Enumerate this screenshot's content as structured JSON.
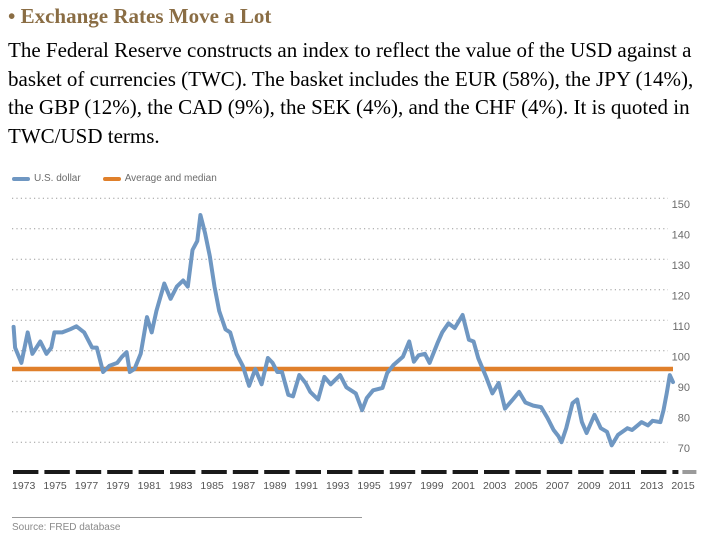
{
  "slide": {
    "heading": "• Exchange Rates Move a Lot",
    "paragraph": "The Federal Reserve constructs an index to reflect the value of the USD against a basket of currencies (TWC). The basket includes the EUR (58%), the JPY (14%), the GBP (12%), the CAD (9%), the SEK (4%), and the CHF (4%).  It is quoted in TWC/USD terms.",
    "source": "Source: FRED database"
  },
  "colors": {
    "heading": "#8a6d44",
    "usd_line": "#6f97c2",
    "average_line": "#e0802b",
    "grid": "#9a9a9a",
    "axis_dash": "#1a1a1a",
    "axis_dash_future": "#9a9a9a"
  },
  "chart_data": {
    "type": "line",
    "title": "",
    "xlabel": "",
    "ylabel": "",
    "xlim": [
      1973,
      2015.5
    ],
    "ylim": [
      70,
      150
    ],
    "y_ticks": [
      70,
      80,
      90,
      100,
      110,
      120,
      130,
      140,
      150
    ],
    "x_ticks": [
      "1973",
      "1975",
      "1977",
      "1979",
      "1981",
      "1983",
      "1985",
      "1987",
      "1989",
      "1991",
      "1993",
      "1995",
      "1997",
      "1999",
      "2001",
      "2003",
      "2005",
      "2007",
      "2009",
      "2011",
      "2013",
      "2015"
    ],
    "grid": "horizontal dotted",
    "y_axis_side": "right",
    "legend": {
      "placement": "top-left",
      "entries": [
        "U.S. dollar",
        "Average and median"
      ]
    },
    "series": [
      {
        "name": "U.S. dollar",
        "points": [
          [
            1973.1,
            107.8
          ],
          [
            1973.2,
            101
          ],
          [
            1973.6,
            96
          ],
          [
            1974.0,
            106
          ],
          [
            1974.3,
            99
          ],
          [
            1974.8,
            103
          ],
          [
            1975.2,
            99
          ],
          [
            1975.5,
            101
          ],
          [
            1975.7,
            106
          ],
          [
            1976.2,
            106
          ],
          [
            1976.7,
            107
          ],
          [
            1977.1,
            108
          ],
          [
            1977.6,
            106
          ],
          [
            1978.1,
            101
          ],
          [
            1978.4,
            101
          ],
          [
            1978.8,
            93
          ],
          [
            1979.2,
            95
          ],
          [
            1979.7,
            96
          ],
          [
            1980.0,
            98
          ],
          [
            1980.3,
            99.5
          ],
          [
            1980.5,
            93
          ],
          [
            1980.8,
            94
          ],
          [
            1981.2,
            99
          ],
          [
            1981.6,
            111
          ],
          [
            1981.9,
            106
          ],
          [
            1982.2,
            113
          ],
          [
            1982.7,
            122
          ],
          [
            1983.1,
            117
          ],
          [
            1983.5,
            121
          ],
          [
            1983.9,
            123
          ],
          [
            1984.2,
            121
          ],
          [
            1984.5,
            133
          ],
          [
            1984.8,
            136
          ],
          [
            1985.0,
            144.5
          ],
          [
            1985.3,
            138.5
          ],
          [
            1985.6,
            131
          ],
          [
            1985.9,
            121
          ],
          [
            1986.2,
            113
          ],
          [
            1986.6,
            107
          ],
          [
            1986.9,
            106
          ],
          [
            1987.3,
            99
          ],
          [
            1987.7,
            95
          ],
          [
            1988.1,
            88.5
          ],
          [
            1988.5,
            94
          ],
          [
            1988.9,
            89
          ],
          [
            1989.3,
            97.6
          ],
          [
            1989.6,
            96
          ],
          [
            1989.9,
            93
          ],
          [
            1990.2,
            93
          ],
          [
            1990.6,
            85.5
          ],
          [
            1990.9,
            85
          ],
          [
            1991.3,
            92
          ],
          [
            1991.7,
            89.4
          ],
          [
            1992.0,
            86.5
          ],
          [
            1992.5,
            84
          ],
          [
            1992.9,
            91.4
          ],
          [
            1993.3,
            89
          ],
          [
            1993.9,
            92
          ],
          [
            1994.3,
            88
          ],
          [
            1994.9,
            86
          ],
          [
            1995.3,
            80.5
          ],
          [
            1995.6,
            84.5
          ],
          [
            1996.0,
            87
          ],
          [
            1996.6,
            87.8
          ],
          [
            1996.9,
            92.7
          ],
          [
            1997.3,
            95.3
          ],
          [
            1997.9,
            98
          ],
          [
            1998.3,
            103
          ],
          [
            1998.6,
            96.4
          ],
          [
            1998.9,
            98.5
          ],
          [
            1999.3,
            99
          ],
          [
            1999.6,
            96
          ],
          [
            2000.1,
            102.5
          ],
          [
            2000.4,
            106
          ],
          [
            2000.8,
            109
          ],
          [
            2001.2,
            107.4
          ],
          [
            2001.7,
            111.7
          ],
          [
            2002.1,
            103.6
          ],
          [
            2002.4,
            103
          ],
          [
            2002.7,
            97.5
          ],
          [
            2003.2,
            91.4
          ],
          [
            2003.6,
            86
          ],
          [
            2004.0,
            89.4
          ],
          [
            2004.4,
            81
          ],
          [
            2004.9,
            84
          ],
          [
            2005.3,
            86.5
          ],
          [
            2005.7,
            83
          ],
          [
            2006.2,
            82
          ],
          [
            2006.7,
            81.5
          ],
          [
            2007.1,
            78
          ],
          [
            2007.5,
            74
          ],
          [
            2007.8,
            72
          ],
          [
            2008.0,
            70
          ],
          [
            2008.3,
            74.6
          ],
          [
            2008.7,
            82.8
          ],
          [
            2009.0,
            84
          ],
          [
            2009.3,
            76.6
          ],
          [
            2009.6,
            73
          ],
          [
            2010.1,
            79
          ],
          [
            2010.5,
            74.6
          ],
          [
            2010.9,
            73.4
          ],
          [
            2011.2,
            69
          ],
          [
            2011.6,
            72.4
          ],
          [
            2012.2,
            74.6
          ],
          [
            2012.5,
            74
          ],
          [
            2013.1,
            76.6
          ],
          [
            2013.5,
            75.5
          ],
          [
            2013.8,
            77
          ],
          [
            2014.3,
            76.6
          ],
          [
            2014.5,
            80.5
          ],
          [
            2014.7,
            86
          ],
          [
            2014.9,
            92
          ],
          [
            2015.1,
            89.7
          ]
        ]
      },
      {
        "name": "Average and median",
        "points": [
          [
            1973.0,
            94
          ],
          [
            2015.1,
            94
          ]
        ]
      }
    ]
  }
}
